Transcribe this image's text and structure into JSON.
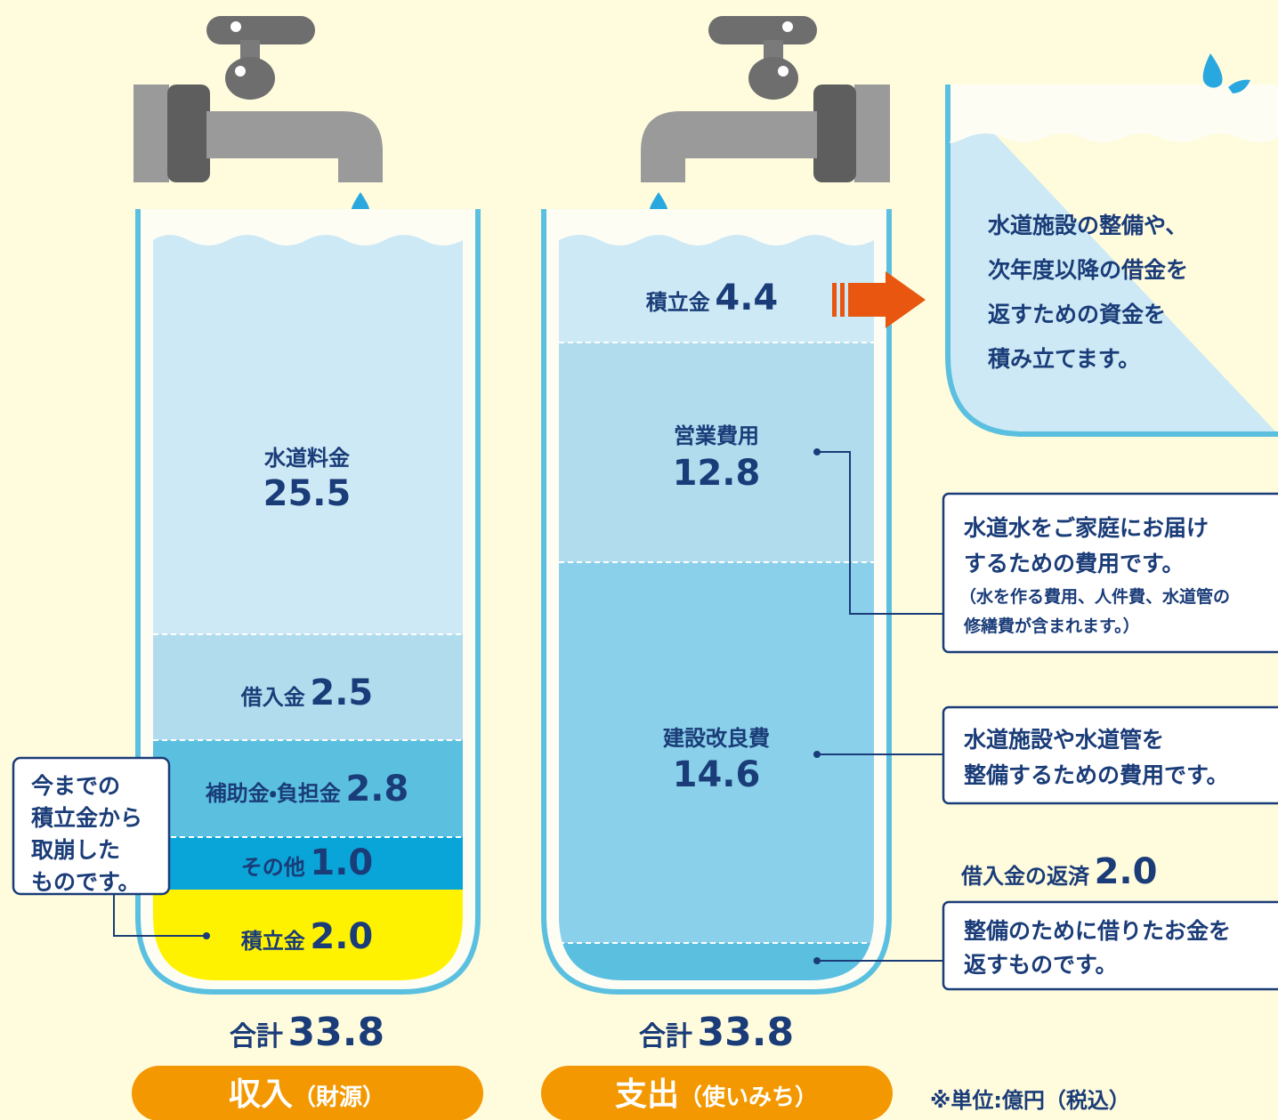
{
  "income": {
    "segments": [
      {
        "label": "水道料金",
        "value": "25.5"
      },
      {
        "label": "借入金",
        "value": "2.5"
      },
      {
        "label": "補助金・負担金",
        "value": "2.8"
      },
      {
        "label": "その他",
        "value": "1.0"
      },
      {
        "label": "積立金",
        "value": "2.0"
      }
    ],
    "total_label": "合計",
    "total": "33.8",
    "title": "収入",
    "title_note": "（財源）",
    "callout": [
      "今までの",
      "積立金から",
      "取崩した",
      "ものです。"
    ]
  },
  "expenditure": {
    "segments": [
      {
        "label": "積立金",
        "value": "4.4"
      },
      {
        "label": "営業費用",
        "value": "12.8"
      },
      {
        "label": "建設改良費",
        "value": "14.6"
      },
      {
        "label": "借入金の返済",
        "value": "2.0"
      }
    ],
    "total_label": "合計",
    "total": "33.8",
    "title": "支出",
    "title_note": "（使いみち）"
  },
  "reserve_note": [
    "水道施設の整備や、",
    "次年度以降の借金を",
    "返すための資金を",
    "積み立てます。"
  ],
  "notes": {
    "operating": {
      "lines": [
        "水道水をご家庭にお届け",
        "するための費用です。"
      ],
      "detail": [
        "（水を作る費用、人件費、水道管の",
        "修繕費が含まれます。）"
      ]
    },
    "construction": [
      "水道施設や水道管を",
      "整備するための費用です。"
    ],
    "repayment": [
      "整備のために借りたお金を",
      "返すものです。"
    ]
  },
  "unit_note": "※単位:億円（税込）"
}
